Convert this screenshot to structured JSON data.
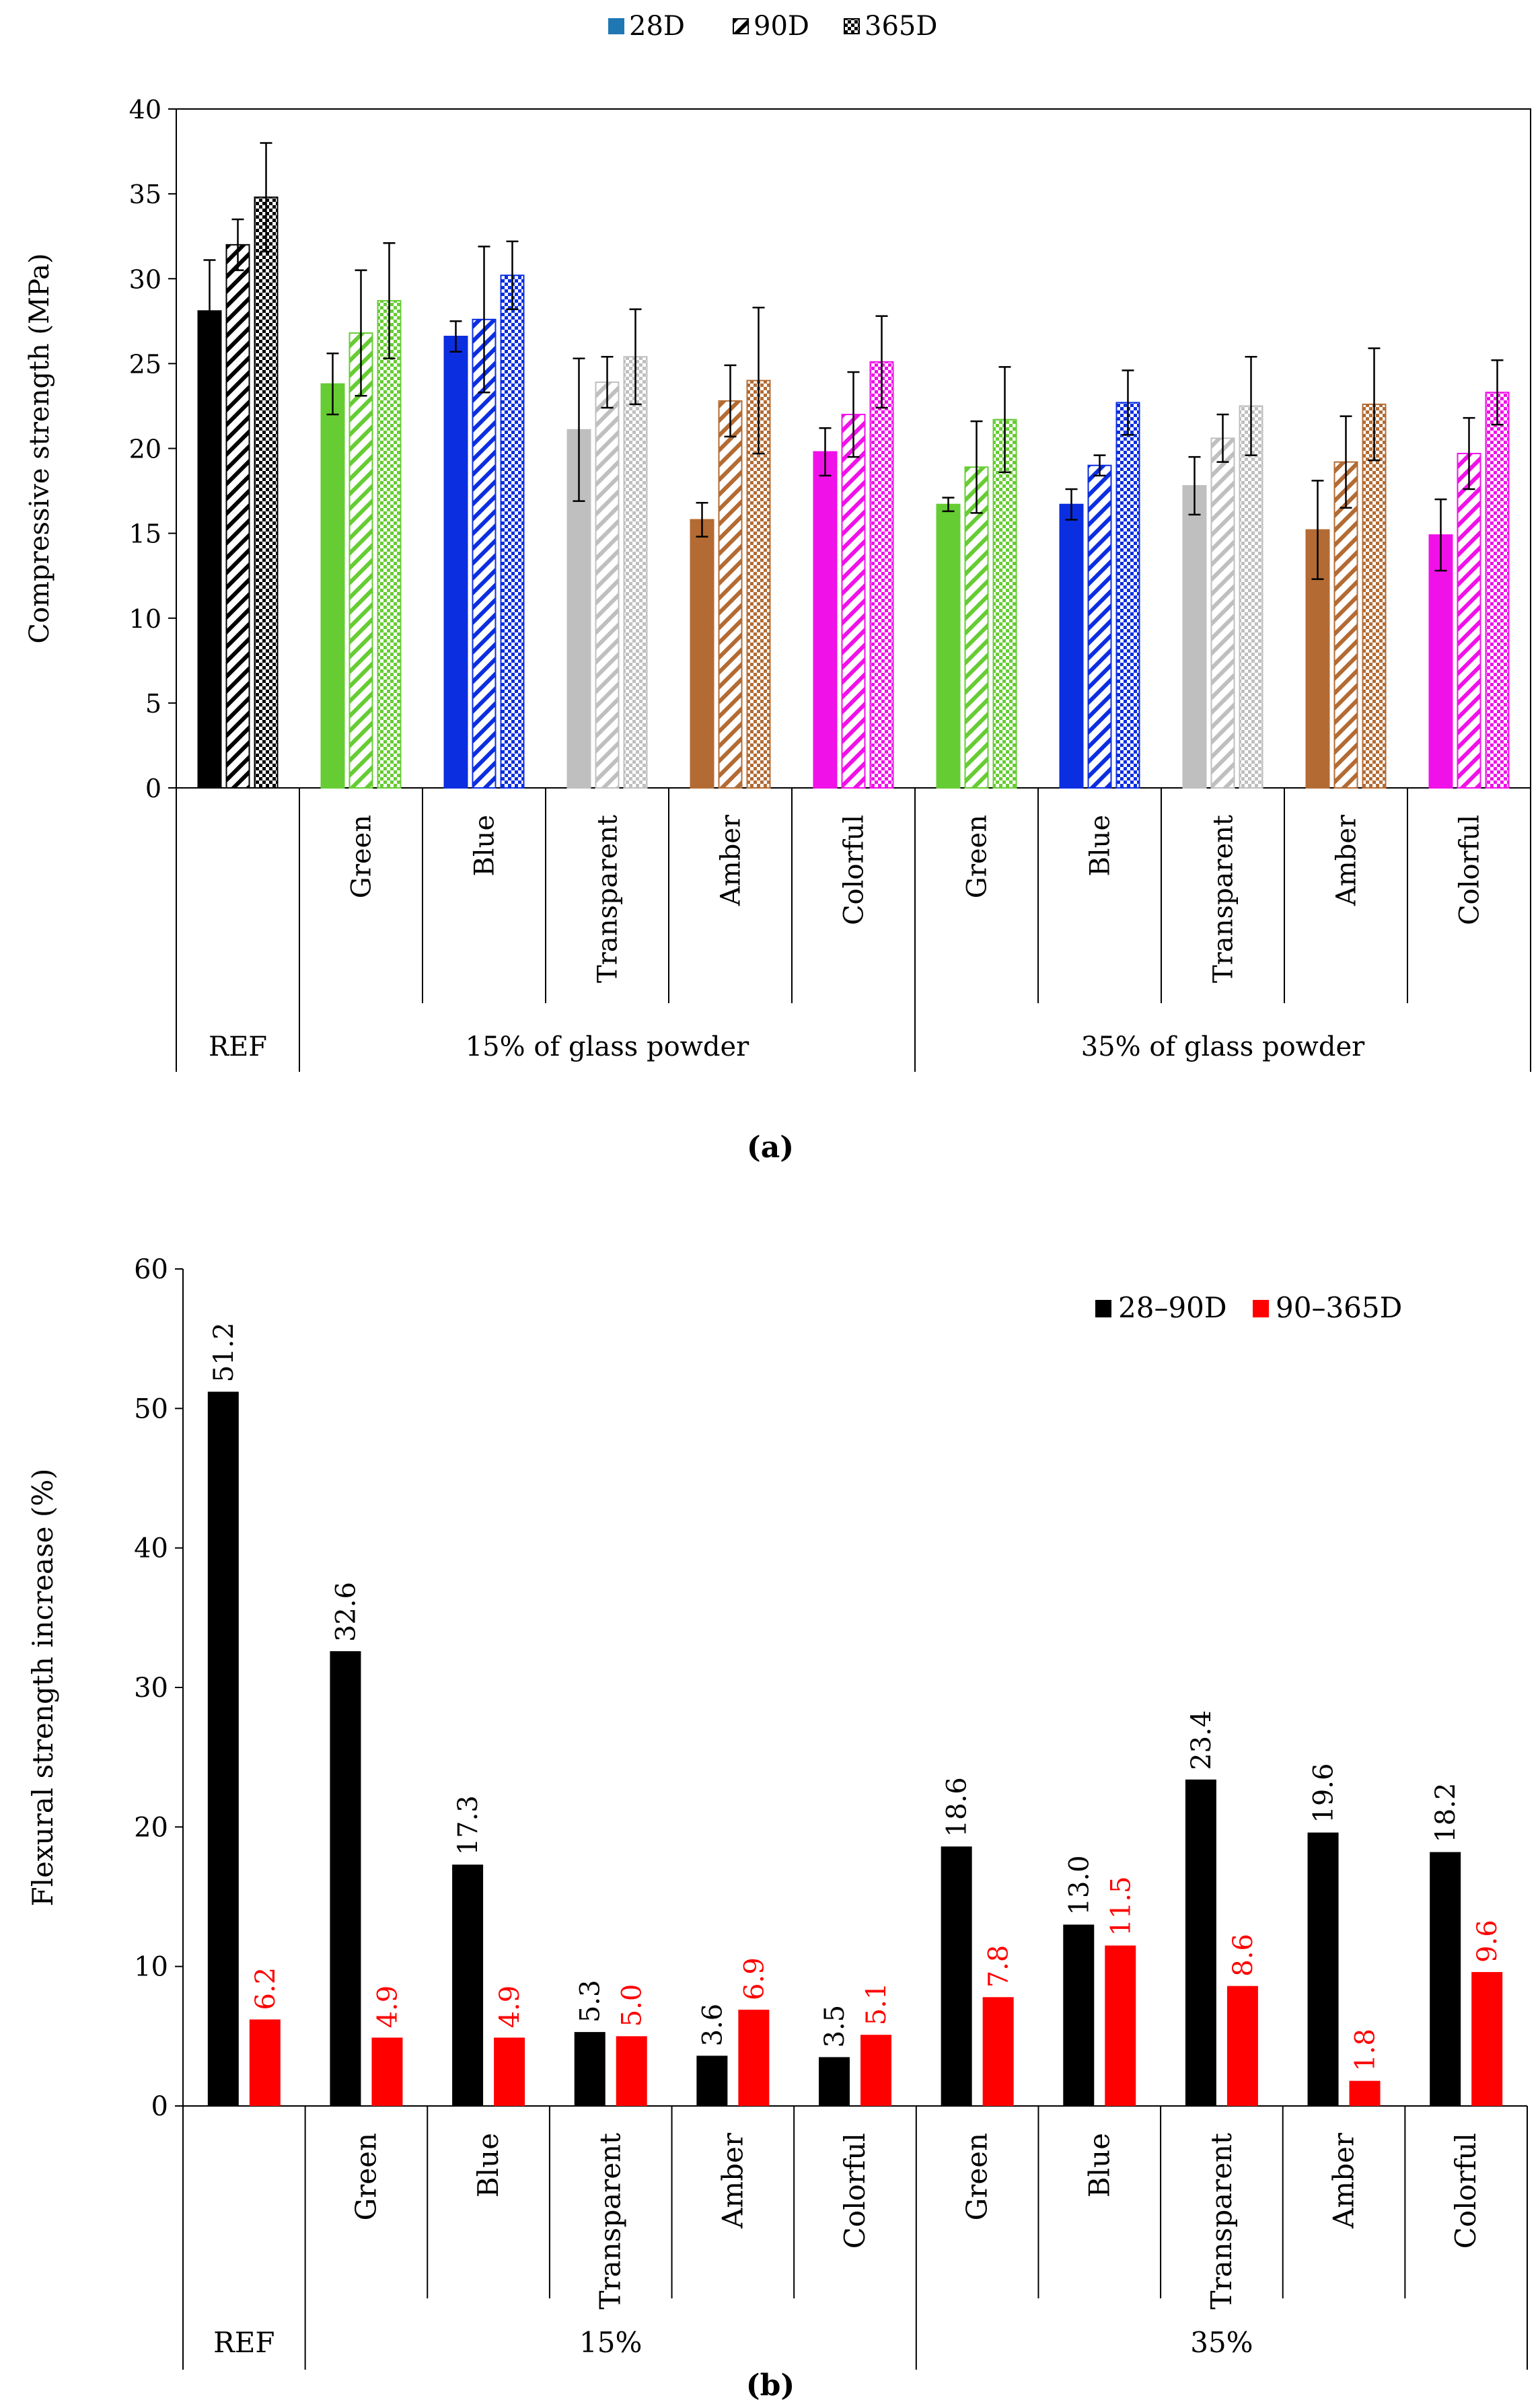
{
  "panels": [
    {
      "caption": "(a)",
      "chart_data": {
        "type": "bar",
        "ylabel": "Compressive strength (MPa)",
        "ylim": [
          0,
          40
        ],
        "yticks": [
          0,
          5,
          10,
          15,
          20,
          25,
          30,
          35,
          40
        ],
        "legend": [
          "28D",
          "90D",
          "365D"
        ],
        "legend_position": "top-center",
        "categories": [
          "REF",
          "Green",
          "Blue",
          "Transparent",
          "Amber",
          "Colorful",
          "Green",
          "Blue",
          "Transparent",
          "Amber",
          "Colorful"
        ],
        "category_colors": [
          "#000000",
          "#66cc33",
          "#0b2ee0",
          "#bfbfbf",
          "#b36b33",
          "#f011e8",
          "#66cc33",
          "#0b2ee0",
          "#bfbfbf",
          "#b36b33",
          "#f011e8"
        ],
        "group_labels": [
          {
            "label": "REF",
            "from": 0,
            "to": 0
          },
          {
            "label": "15% of glass powder",
            "from": 1,
            "to": 5
          },
          {
            "label": "35% of glass powder",
            "from": 6,
            "to": 10
          }
        ],
        "series": [
          {
            "name": "28D",
            "values": [
              28.1,
              23.8,
              26.6,
              21.1,
              15.8,
              19.8,
              16.7,
              16.7,
              17.8,
              15.2,
              14.9
            ],
            "error": [
              3.0,
              1.8,
              0.9,
              4.2,
              1.0,
              1.4,
              0.4,
              0.9,
              1.7,
              2.9,
              2.1
            ]
          },
          {
            "name": "90D",
            "values": [
              32.0,
              26.8,
              27.6,
              23.9,
              22.8,
              22.0,
              18.9,
              19.0,
              20.6,
              19.2,
              19.7
            ],
            "error": [
              1.5,
              3.7,
              4.3,
              1.5,
              2.1,
              2.5,
              2.7,
              0.6,
              1.4,
              2.7,
              2.1
            ]
          },
          {
            "name": "365D",
            "values": [
              34.8,
              28.7,
              30.2,
              25.4,
              24.0,
              25.1,
              21.7,
              22.7,
              22.5,
              22.6,
              23.3
            ],
            "error": [
              3.2,
              3.4,
              2.0,
              2.8,
              4.3,
              2.7,
              3.1,
              1.9,
              2.9,
              3.3,
              1.9
            ]
          }
        ]
      }
    },
    {
      "caption": "(b)",
      "chart_data": {
        "type": "bar",
        "ylabel": "Flexural strength increase (%)",
        "ylim": [
          0,
          60
        ],
        "yticks": [
          0,
          10,
          20,
          30,
          40,
          50,
          60
        ],
        "legend": [
          "28–90D",
          "90–365D"
        ],
        "legend_position": "top-right",
        "categories": [
          "REF",
          "Green",
          "Blue",
          "Transparent",
          "Amber",
          "Colorful",
          "Green",
          "Blue",
          "Transparent",
          "Amber",
          "Colorful"
        ],
        "group_labels": [
          {
            "label": "REF",
            "from": 0,
            "to": 0
          },
          {
            "label": "15%",
            "from": 1,
            "to": 5
          },
          {
            "label": "35%",
            "from": 6,
            "to": 10
          }
        ],
        "series": [
          {
            "name": "28–90D",
            "color": "#000000",
            "values": [
              51.2,
              32.6,
              17.3,
              5.3,
              3.6,
              3.5,
              18.6,
              13.0,
              23.4,
              19.6,
              18.2
            ],
            "labels": [
              "51.2",
              "32.6",
              "17.3",
              "5.3",
              "3.6",
              "3.5",
              "18.6",
              "13.0",
              "23.4",
              "19.6",
              "18.2"
            ]
          },
          {
            "name": "90–365D",
            "color": "#ff0000",
            "values": [
              6.2,
              4.9,
              4.9,
              5.0,
              6.9,
              5.1,
              7.8,
              11.5,
              8.6,
              1.8,
              9.6
            ],
            "labels": [
              "6.2",
              "4.9",
              "4.9",
              "5.0",
              "6.9",
              "5.1",
              "7.8",
              "11.5",
              "8.6",
              "1.8",
              "9.6"
            ]
          }
        ]
      }
    }
  ]
}
